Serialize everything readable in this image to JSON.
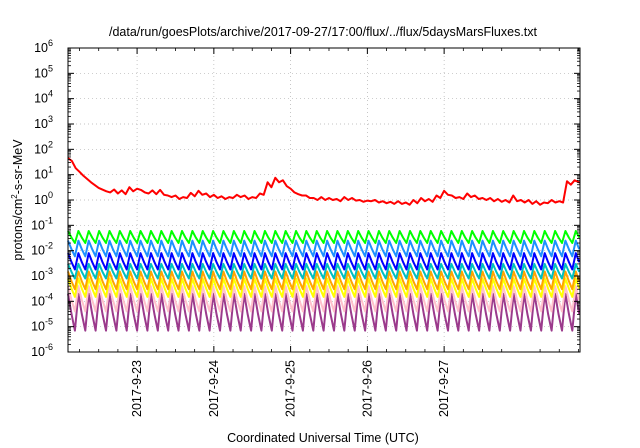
{
  "chart_data": {
    "type": "line",
    "title": "/data/run/goesPlots/archive/2017-09-27/17:00/flux/../flux/5daysMarsFluxes.txt",
    "xlabel": "Coordinated Universal Time (UTC)",
    "ylabel": {
      "base": "protons/cm",
      "sup": "2",
      "rest": "-s-sr-MeV"
    },
    "x_range_days": [
      -0.9,
      5.77
    ],
    "x_ticks": [
      {
        "day": 0,
        "label": "2017-9-23"
      },
      {
        "day": 1,
        "label": "2017-9-24"
      },
      {
        "day": 2,
        "label": "2017-9-25"
      },
      {
        "day": 3,
        "label": "2017-9-26"
      },
      {
        "day": 4,
        "label": "2017-9-27"
      }
    ],
    "y_scale": "log",
    "ylim": [
      1e-06,
      1000000.0
    ],
    "y_ticks": [
      {
        "exp": -6,
        "label": "10",
        "sup": "-6"
      },
      {
        "exp": -5,
        "label": "10",
        "sup": "-5"
      },
      {
        "exp": -4,
        "label": "10",
        "sup": "-4"
      },
      {
        "exp": -3,
        "label": "10",
        "sup": "-3"
      },
      {
        "exp": -2,
        "label": "10",
        "sup": "-2"
      },
      {
        "exp": -1,
        "label": "10",
        "sup": "-1"
      },
      {
        "exp": 0,
        "label": "10",
        "sup": "0"
      },
      {
        "exp": 1,
        "label": "10",
        "sup": "1"
      },
      {
        "exp": 2,
        "label": "10",
        "sup": "2"
      },
      {
        "exp": 3,
        "label": "10",
        "sup": "3"
      },
      {
        "exp": 4,
        "label": "10",
        "sup": "4"
      },
      {
        "exp": 5,
        "label": "10",
        "sup": "5"
      },
      {
        "exp": 6,
        "label": "10",
        "sup": "6"
      }
    ],
    "grid": true,
    "series": [
      {
        "color": "#ff0000",
        "x": [
          -0.9,
          -0.85,
          -0.8,
          -0.75,
          -0.7,
          -0.6,
          -0.5,
          -0.4,
          -0.35,
          -0.3,
          -0.25,
          -0.2,
          -0.15,
          -0.1,
          -0.05,
          0.0,
          0.05,
          0.1,
          0.15,
          0.2,
          0.25,
          0.3,
          0.35,
          0.4,
          0.45,
          0.5,
          0.55,
          0.6,
          0.65,
          0.7,
          0.75,
          0.8,
          0.85,
          0.9,
          0.95,
          1.0,
          1.05,
          1.1,
          1.15,
          1.2,
          1.25,
          1.3,
          1.35,
          1.4,
          1.45,
          1.5,
          1.55,
          1.6,
          1.65,
          1.7,
          1.75,
          1.8,
          1.85,
          1.9,
          1.95,
          2.0,
          2.05,
          2.1,
          2.15,
          2.2,
          2.25,
          2.3,
          2.35,
          2.4,
          2.45,
          2.5,
          2.55,
          2.6,
          2.65,
          2.7,
          2.75,
          2.8,
          2.85,
          2.9,
          2.95,
          3.0,
          3.05,
          3.1,
          3.15,
          3.2,
          3.25,
          3.3,
          3.35,
          3.4,
          3.45,
          3.5,
          3.55,
          3.6,
          3.65,
          3.7,
          3.75,
          3.8,
          3.85,
          3.9,
          3.95,
          4.0,
          4.05,
          4.1,
          4.15,
          4.2,
          4.25,
          4.3,
          4.35,
          4.4,
          4.45,
          4.5,
          4.55,
          4.6,
          4.65,
          4.7,
          4.75,
          4.8,
          4.85,
          4.9,
          4.95,
          5.0,
          5.05,
          5.1,
          5.15,
          5.2,
          5.25,
          5.3,
          5.35,
          5.4,
          5.45,
          5.5,
          5.55,
          5.6,
          5.65,
          5.7,
          5.77
        ],
        "y": [
          45,
          35,
          18,
          13,
          9,
          5,
          3,
          2.2,
          2,
          2.6,
          1.8,
          2.4,
          1.7,
          3.2,
          2.2,
          2.8,
          2.5,
          2,
          1.8,
          2.4,
          1.7,
          2.5,
          1.6,
          1.5,
          1.3,
          1.5,
          1.1,
          1.3,
          1.2,
          1.9,
          1.4,
          2.3,
          1.6,
          1.8,
          1.3,
          1.6,
          1.2,
          1.4,
          1.1,
          1.3,
          1.2,
          1.6,
          1.3,
          1.5,
          1.1,
          1.3,
          1.2,
          1.8,
          1.6,
          5,
          3.2,
          7.5,
          5,
          6,
          3.5,
          2.8,
          2,
          1.7,
          1.5,
          1.5,
          1.2,
          1.2,
          1,
          1.3,
          1,
          1.2,
          1,
          1.1,
          0.9,
          1.3,
          1,
          1.2,
          0.95,
          1,
          0.85,
          0.95,
          0.9,
          1,
          0.8,
          0.9,
          0.75,
          0.85,
          0.7,
          0.9,
          0.7,
          0.8,
          0.65,
          1,
          0.75,
          1.2,
          0.9,
          1.1,
          0.85,
          1.5,
          1.2,
          2.3,
          1.6,
          1.5,
          1.2,
          1.3,
          1.1,
          1.8,
          1.3,
          1.5,
          1.1,
          1.2,
          1,
          1.2,
          0.9,
          1.1,
          0.85,
          1,
          0.8,
          1.5,
          0.9,
          1,
          0.8,
          1,
          0.7,
          0.9,
          0.65,
          0.8,
          0.75,
          1,
          0.8,
          0.9,
          0.8,
          5.5,
          4,
          6,
          4.8
        ]
      },
      {
        "color": "#00ff00",
        "min": 0.02,
        "max": 0.06
      },
      {
        "color": "#1e90ff",
        "min": 0.006,
        "max": 0.025
      },
      {
        "color": "#0000ff",
        "min": 0.0018,
        "max": 0.008
      },
      {
        "color": "#00c0c0",
        "min": 0.0008,
        "max": 0.003
      },
      {
        "color": "#ffa500",
        "min": 0.0003,
        "max": 0.0015
      },
      {
        "color": "#ffff00",
        "min": 0.00015,
        "max": 0.0008
      },
      {
        "color": "#ffc0cb",
        "min": 4e-05,
        "max": 0.0004
      },
      {
        "color": "#9b3a8c",
        "min": 7e-06,
        "max": 0.0002
      }
    ]
  }
}
